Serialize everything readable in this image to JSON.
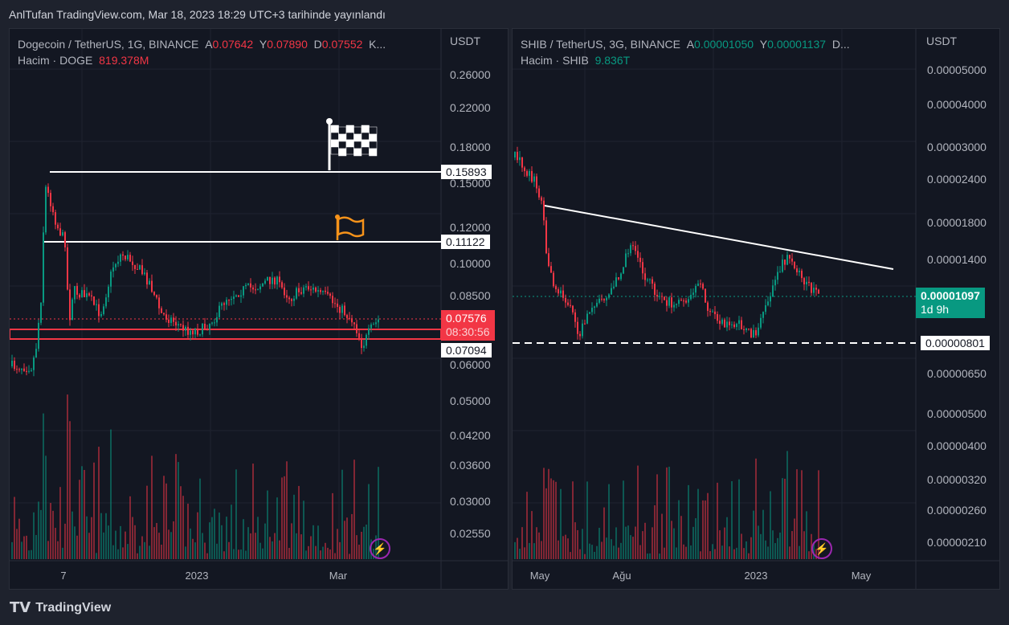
{
  "header": {
    "published": "AnlTufan TradingView.com, Mar 18, 2023 18:29 UTC+3 tarihinde yayınlandı"
  },
  "left": {
    "symbol": "Dogecoin / TetherUS, 1G, BINANCE",
    "o_label": "A",
    "o": "0.07642",
    "h_label": "Y",
    "h": "0.07890",
    "l_label": "D",
    "l": "0.07552",
    "more": "K...",
    "vol_label": "Hacim · DOGE",
    "vol": "819.378M",
    "unit": "USDT",
    "ticks": [
      "0.26000",
      "0.22000",
      "0.18000",
      "0.15000",
      "0.12000",
      "0.10000",
      "0.08500",
      "0.06000",
      "0.05000",
      "0.04200",
      "0.03600",
      "0.03000",
      "0.02550"
    ],
    "levels": [
      "0.15893",
      "0.11122",
      "0.07094"
    ],
    "current_price": "0.07576",
    "countdown": "08:30:56",
    "xticks": [
      "7",
      "2023",
      "Mar"
    ],
    "icons": [
      "checkered-flag-icon",
      "orange-flag-icon",
      "lightning-icon"
    ]
  },
  "right": {
    "symbol": "SHIB / TetherUS, 3G, BINANCE",
    "o_label": "A",
    "o": "0.00001050",
    "h_label": "Y",
    "h": "0.00001137",
    "more": "D...",
    "vol_label": "Hacim · SHIB",
    "vol": "9.836T",
    "unit": "USDT",
    "ticks": [
      "0.00005000",
      "0.00004000",
      "0.00003000",
      "0.00002400",
      "0.00001800",
      "0.00001400",
      "0.00000650",
      "0.00000500",
      "0.00000400",
      "0.00000320",
      "0.00000260",
      "0.00000210"
    ],
    "support": "0.00000801",
    "current_price": "0.00001097",
    "countdown": "1d 9h",
    "xticks": [
      "May",
      "Ağu",
      "2023",
      "May"
    ]
  },
  "footer": {
    "brand": "TradingView"
  },
  "colors": {
    "up": "#089981",
    "down": "#f23645",
    "bg": "#131722"
  }
}
